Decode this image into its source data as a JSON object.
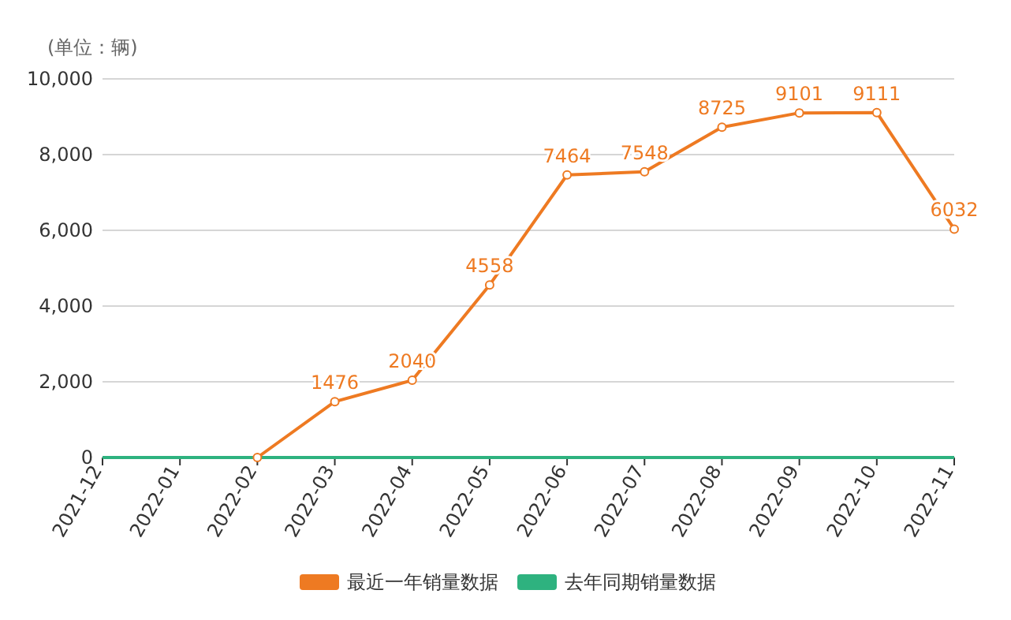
{
  "chart_data": {
    "type": "line",
    "ylabel": "(单位：辆)",
    "categories": [
      "2021-12",
      "2022-01",
      "2022-02",
      "2022-03",
      "2022-04",
      "2022-05",
      "2022-06",
      "2022-07",
      "2022-08",
      "2022-09",
      "2022-10",
      "2022-11"
    ],
    "series": [
      {
        "name": "最近一年销量数据",
        "color": "#ee7a22",
        "values": [
          null,
          null,
          0,
          1476,
          2040,
          4558,
          7464,
          7548,
          8725,
          9101,
          9111,
          6032
        ],
        "value_labels": [
          null,
          null,
          null,
          "1476",
          "2040",
          "4558",
          "7464",
          "7548",
          "8725",
          "9101",
          "9111",
          "6032"
        ],
        "marker": "circle"
      },
      {
        "name": "去年同期销量数据",
        "color": "#2eb27f",
        "values": [
          0,
          0,
          0,
          0,
          0,
          0,
          0,
          0,
          0,
          0,
          0,
          0
        ],
        "marker": "none"
      }
    ],
    "ylim": [
      0,
      10000
    ],
    "yticks": [
      {
        "value": 0,
        "label": "0"
      },
      {
        "value": 2000,
        "label": "2,000"
      },
      {
        "value": 4000,
        "label": "4,000"
      },
      {
        "value": 6000,
        "label": "6,000"
      },
      {
        "value": 8000,
        "label": "8,000"
      },
      {
        "value": 10000,
        "label": "10,000"
      }
    ],
    "grid": "y",
    "legend": "bottom",
    "line_style": "solid"
  }
}
